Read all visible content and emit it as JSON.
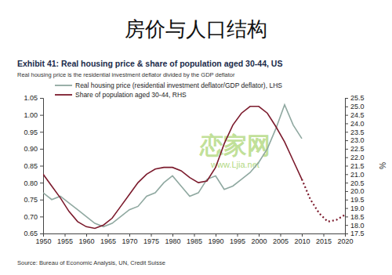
{
  "chart_data": {
    "type": "line",
    "title": "房价与人口结构",
    "subtitle": "Exhibit 41: Real housing price & share of population aged 30-44, US",
    "note": "Real housing price is the residential investment deflator divided by the GDP deflator",
    "source": "Source: Bureau of Economic Analysis, UN, Credit Suisse",
    "y2label": "%",
    "annotations": [
      "恋家网",
      "www.Ljia.net"
    ],
    "x": [
      1950,
      1952,
      1954,
      1956,
      1958,
      1960,
      1962,
      1964,
      1966,
      1968,
      1970,
      1972,
      1974,
      1976,
      1978,
      1980,
      1982,
      1984,
      1986,
      1988,
      1990,
      1992,
      1994,
      1996,
      1998,
      2000,
      2002,
      2004,
      2006,
      2008,
      2010,
      2012,
      2014,
      2016,
      2018,
      2020
    ],
    "xlim": [
      1950,
      2020
    ],
    "xticks": [
      1950,
      1955,
      1960,
      1965,
      1970,
      1975,
      1980,
      1985,
      1990,
      1995,
      2000,
      2005,
      2010,
      2015,
      2020
    ],
    "ylim": [
      0.65,
      1.05
    ],
    "yticks": [
      0.65,
      {
        "value": 0.7,
        "label": "0.70"
      },
      0.75,
      {
        "value": 0.8,
        "label": "0.80"
      },
      0.85,
      {
        "value": 0.9,
        "label": "0.90"
      },
      0.95,
      {
        "value": 1.0,
        "label": "1.00"
      },
      1.05
    ],
    "y2lim": [
      17.5,
      25.5
    ],
    "y2ticks": [
      17.5,
      {
        "value": 18,
        "label": "18.0"
      },
      18.5,
      {
        "value": 19,
        "label": "19.0"
      },
      19.5,
      {
        "value": 20,
        "label": "20.0"
      },
      20.5,
      {
        "value": 21,
        "label": "21.0"
      },
      21.5,
      {
        "value": 22,
        "label": "22.0"
      },
      22.5,
      {
        "value": 23,
        "label": "23.0"
      },
      23.5,
      {
        "value": 24,
        "label": "24.0"
      },
      24.5,
      {
        "value": 25,
        "label": "25.0"
      },
      25.5
    ],
    "grid": false,
    "legend": "top-left",
    "series": [
      {
        "name": "Real housing price (residential investment deflator/GDP deflator), LHS",
        "color": "#8fa8a0",
        "line_style": "solid",
        "values": [
          0.77,
          0.75,
          0.76,
          0.74,
          0.72,
          0.7,
          0.68,
          0.67,
          0.68,
          0.7,
          0.72,
          0.73,
          0.76,
          0.77,
          0.8,
          0.82,
          0.79,
          0.76,
          0.77,
          0.81,
          0.82,
          0.78,
          0.79,
          0.81,
          0.83,
          0.86,
          0.9,
          0.96,
          1.03,
          0.97,
          0.93,
          null,
          null,
          null,
          null,
          null
        ]
      },
      {
        "name": "Share of population aged 30-44, RHS",
        "color": "#7b1a2c",
        "axis": "y2",
        "line_style": "solid",
        "values": [
          21.0,
          20.3,
          19.6,
          18.8,
          18.2,
          17.9,
          17.8,
          18.0,
          18.4,
          19.1,
          19.8,
          20.5,
          21.0,
          21.3,
          21.4,
          21.4,
          21.2,
          20.8,
          20.5,
          20.6,
          21.4,
          22.8,
          23.9,
          24.6,
          25.0,
          25.0,
          24.6,
          23.8,
          22.9,
          21.8,
          20.7,
          null,
          null,
          null,
          null,
          null
        ]
      },
      {
        "color": "#7b1a2c",
        "axis": "y2",
        "line_style": "dotted",
        "values": [
          null,
          null,
          null,
          null,
          null,
          null,
          null,
          null,
          null,
          null,
          null,
          null,
          null,
          null,
          null,
          null,
          null,
          null,
          null,
          null,
          null,
          null,
          null,
          null,
          null,
          null,
          null,
          null,
          null,
          null,
          20.7,
          19.5,
          18.7,
          18.2,
          18.3,
          18.6
        ]
      }
    ]
  }
}
